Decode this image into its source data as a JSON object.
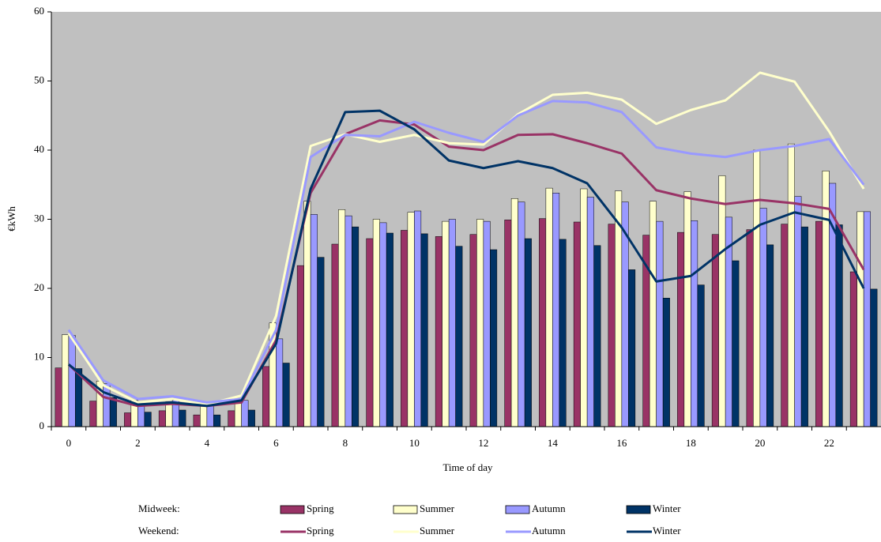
{
  "chart_data": {
    "type": "bar",
    "y_label": "€kWh",
    "x_label": "Time of day",
    "categories": [
      0,
      null,
      2,
      null,
      4,
      null,
      6,
      null,
      8,
      null,
      10,
      null,
      12,
      null,
      14,
      null,
      16,
      null,
      18,
      null,
      20,
      null,
      22,
      null
    ],
    "ylim": [
      0,
      60
    ],
    "yticks": [
      0,
      10,
      20,
      30,
      40,
      50,
      60
    ],
    "background": "#c0c0c0",
    "series_groups": [
      {
        "name": "Midweek:",
        "type": "bar",
        "series": [
          {
            "name": "Spring",
            "color": "#993366",
            "values": [
              8.5,
              3.7,
              2.0,
              2.3,
              1.7,
              2.3,
              8.7,
              23.3,
              26.4,
              27.2,
              28.4,
              27.5,
              27.8,
              29.9,
              30.1,
              29.6,
              29.3,
              27.7,
              28.1,
              27.8,
              28.5,
              29.3,
              29.7,
              22.4
            ]
          },
          {
            "name": "Summer",
            "color": "#ffffcc",
            "values": [
              13.3,
              6.6,
              3.8,
              3.6,
              3.2,
              4.0,
              15.0,
              32.6,
              31.4,
              30.0,
              31.0,
              29.7,
              30.0,
              33.0,
              34.5,
              34.4,
              34.1,
              32.6,
              34.0,
              36.3,
              40.0,
              40.9,
              37.0,
              31.1
            ]
          },
          {
            "name": "Autumn",
            "color": "#9999ff",
            "values": [
              13.2,
              6.2,
              3.6,
              3.8,
              3.1,
              3.8,
              12.7,
              30.7,
              30.5,
              29.5,
              31.2,
              30.0,
              29.7,
              32.5,
              33.8,
              33.2,
              32.5,
              29.7,
              29.8,
              30.3,
              31.6,
              33.3,
              35.2,
              31.1
            ]
          },
          {
            "name": "Winter",
            "color": "#003366",
            "values": [
              8.4,
              4.2,
              2.1,
              2.4,
              1.7,
              2.4,
              9.2,
              24.5,
              28.9,
              28.0,
              27.9,
              26.1,
              25.6,
              27.2,
              27.1,
              26.2,
              22.7,
              18.6,
              20.5,
              24.0,
              26.3,
              28.9,
              29.2,
              19.9
            ]
          }
        ]
      },
      {
        "name": "Weekend:",
        "type": "line",
        "series": [
          {
            "name": "Spring",
            "color": "#993366",
            "values": [
              9.0,
              4.3,
              3.0,
              3.3,
              3.0,
              3.5,
              12.5,
              33.8,
              42.3,
              44.3,
              43.7,
              40.5,
              40.0,
              42.2,
              42.3,
              41.0,
              39.5,
              34.2,
              33.0,
              32.2,
              32.8,
              32.3,
              31.5,
              22.7
            ]
          },
          {
            "name": "Summer",
            "color": "#ffffcc",
            "values": [
              13.5,
              6.0,
              3.5,
              4.0,
              3.2,
              4.5,
              16.0,
              40.6,
              42.3,
              41.2,
              42.2,
              41.0,
              40.8,
              45.2,
              48.0,
              48.3,
              47.3,
              43.8,
              45.8,
              47.2,
              51.2,
              49.9,
              42.7,
              34.4
            ]
          },
          {
            "name": "Autumn",
            "color": "#9999ff",
            "values": [
              14.0,
              6.7,
              4.0,
              4.4,
              3.5,
              4.0,
              14.0,
              39.0,
              42.2,
              42.0,
              44.1,
              42.5,
              41.2,
              45.0,
              47.1,
              46.9,
              45.5,
              40.4,
              39.5,
              39.0,
              40.0,
              40.6,
              41.6,
              35.0
            ]
          },
          {
            "name": "Winter",
            "color": "#003366",
            "values": [
              9.0,
              5.0,
              3.2,
              3.5,
              3.0,
              3.8,
              12.0,
              34.4,
              45.5,
              45.7,
              43.0,
              38.5,
              37.4,
              38.4,
              37.4,
              35.2,
              28.8,
              21.0,
              21.8,
              25.7,
              29.2,
              31.0,
              29.9,
              20.0
            ]
          }
        ]
      }
    ]
  }
}
